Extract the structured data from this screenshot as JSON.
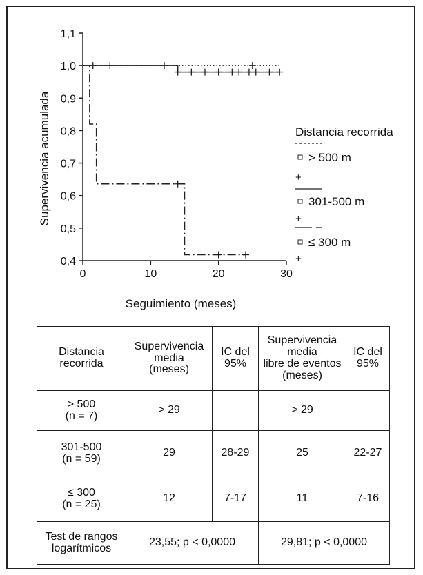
{
  "chart_data": {
    "type": "line",
    "subtype": "kaplan-meier step survival curves",
    "xlabel": "Seguimiento (meses)",
    "ylabel": "Supervivencia acumulada",
    "xlim": [
      0,
      30
    ],
    "ylim": [
      0.4,
      1.1
    ],
    "xticks": [
      "0",
      "10",
      "20",
      "30"
    ],
    "yticks": [
      "0,4",
      "0,5",
      "0,6",
      "0,7",
      "0,8",
      "0,9",
      "1,0",
      "1,1"
    ],
    "grid": false,
    "legend_position": "right",
    "legend_title": "Distancia recorrida",
    "series": [
      {
        "name": "> 500 m",
        "line_style": "dotted",
        "steps": [
          [
            0,
            1.0
          ],
          [
            29,
            1.0
          ]
        ],
        "censored": [
          [
            25,
            1.0
          ]
        ]
      },
      {
        "name": "301-500 m",
        "line_style": "solid",
        "steps": [
          [
            0,
            1.0
          ],
          [
            14,
            1.0
          ],
          [
            14,
            0.98
          ],
          [
            29,
            0.98
          ]
        ],
        "censored": [
          [
            1.5,
            1.0
          ],
          [
            4,
            1.0
          ],
          [
            12,
            1.0
          ],
          [
            14,
            0.98
          ],
          [
            16,
            0.98
          ],
          [
            18,
            0.98
          ],
          [
            20,
            0.98
          ],
          [
            22,
            0.98
          ],
          [
            23,
            0.98
          ],
          [
            24.5,
            0.98
          ],
          [
            25.5,
            0.98
          ],
          [
            27.5,
            0.98
          ],
          [
            29,
            0.98
          ]
        ]
      },
      {
        "name": "≤ 300 m",
        "line_style": "dash-dot",
        "steps": [
          [
            0,
            1.0
          ],
          [
            1,
            1.0
          ],
          [
            1,
            0.82
          ],
          [
            2,
            0.82
          ],
          [
            2,
            0.636
          ],
          [
            15,
            0.636
          ],
          [
            15,
            0.418
          ],
          [
            24,
            0.418
          ]
        ],
        "censored": [
          [
            14,
            0.636
          ],
          [
            20,
            0.418
          ],
          [
            24,
            0.418
          ]
        ]
      }
    ]
  },
  "legend_markers": [
    "+",
    "+",
    "+"
  ],
  "table": {
    "headers": [
      "Distancia\nrecorrida",
      "Supervivencia\nmedia\n(meses)",
      "IC del\n95%",
      "Supervivencia\nmedia\nlibre de eventos\n(meses)",
      "IC del\n95%"
    ],
    "rows": [
      [
        "> 500\n(n = 7)",
        "> 29",
        "",
        "> 29",
        ""
      ],
      [
        "301-500\n(n = 59)",
        "29",
        "28-29",
        "25",
        "22-27"
      ],
      [
        "≤ 300\n(n = 25)",
        "12",
        "7-17",
        "11",
        "7-16"
      ]
    ],
    "footer": [
      "Test de rangos\nlogarítmicos",
      "23,55; p < 0,0000",
      "29,81; p < 0,0000"
    ]
  }
}
